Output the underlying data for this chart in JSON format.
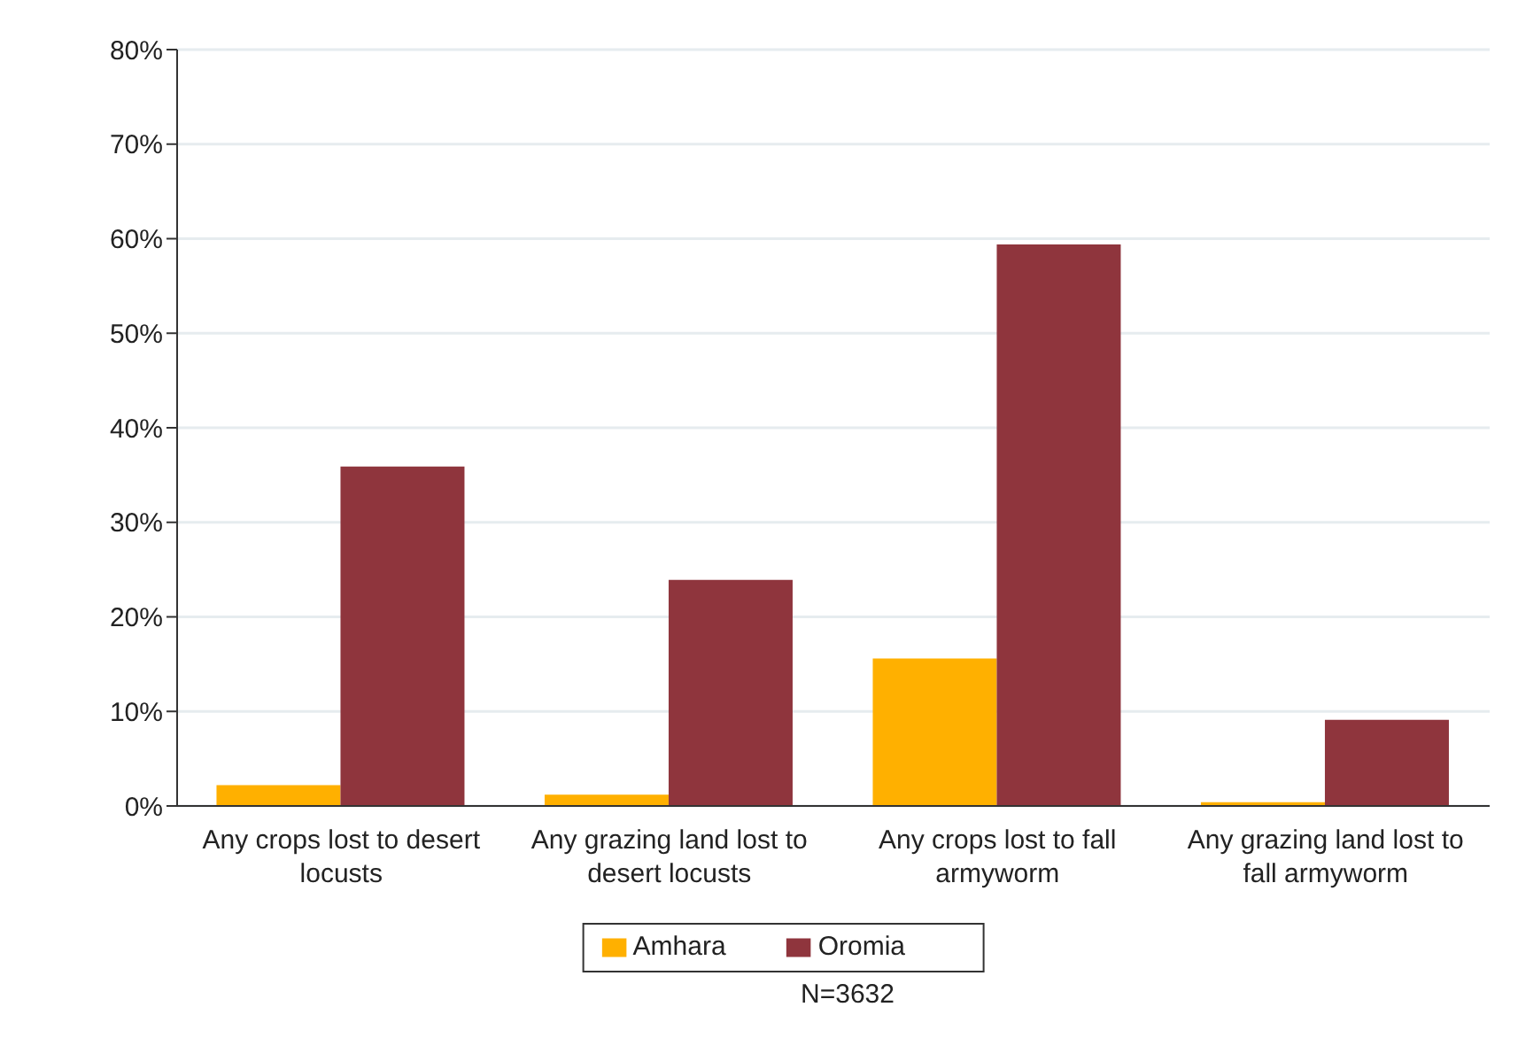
{
  "chart_data": {
    "type": "bar",
    "categories": [
      "Any crops lost to desert locusts",
      "Any grazing land lost to desert locusts",
      "Any crops lost to fall armyworm",
      "Any grazing land lost to fall armyworm"
    ],
    "series": [
      {
        "name": "Amhara",
        "color": "#ffb000",
        "values": [
          2.2,
          1.2,
          15.6,
          0.4
        ]
      },
      {
        "name": "Oromia",
        "color": "#8f353d",
        "values": [
          35.9,
          23.9,
          59.4,
          9.1
        ]
      }
    ],
    "ylim": [
      0,
      80
    ],
    "yticks": [
      {
        "value": 0,
        "label": "0%"
      },
      {
        "value": 10,
        "label": "10%"
      },
      {
        "value": 20,
        "label": "20%"
      },
      {
        "value": 30,
        "label": "30%"
      },
      {
        "value": 40,
        "label": "40%"
      },
      {
        "value": 50,
        "label": "50%"
      },
      {
        "value": 60,
        "label": "60%"
      },
      {
        "value": 70,
        "label": "70%"
      },
      {
        "value": 80,
        "label": "80%"
      }
    ],
    "grid": "y",
    "legend": "bottom",
    "annotations": [
      "N=3632"
    ]
  }
}
